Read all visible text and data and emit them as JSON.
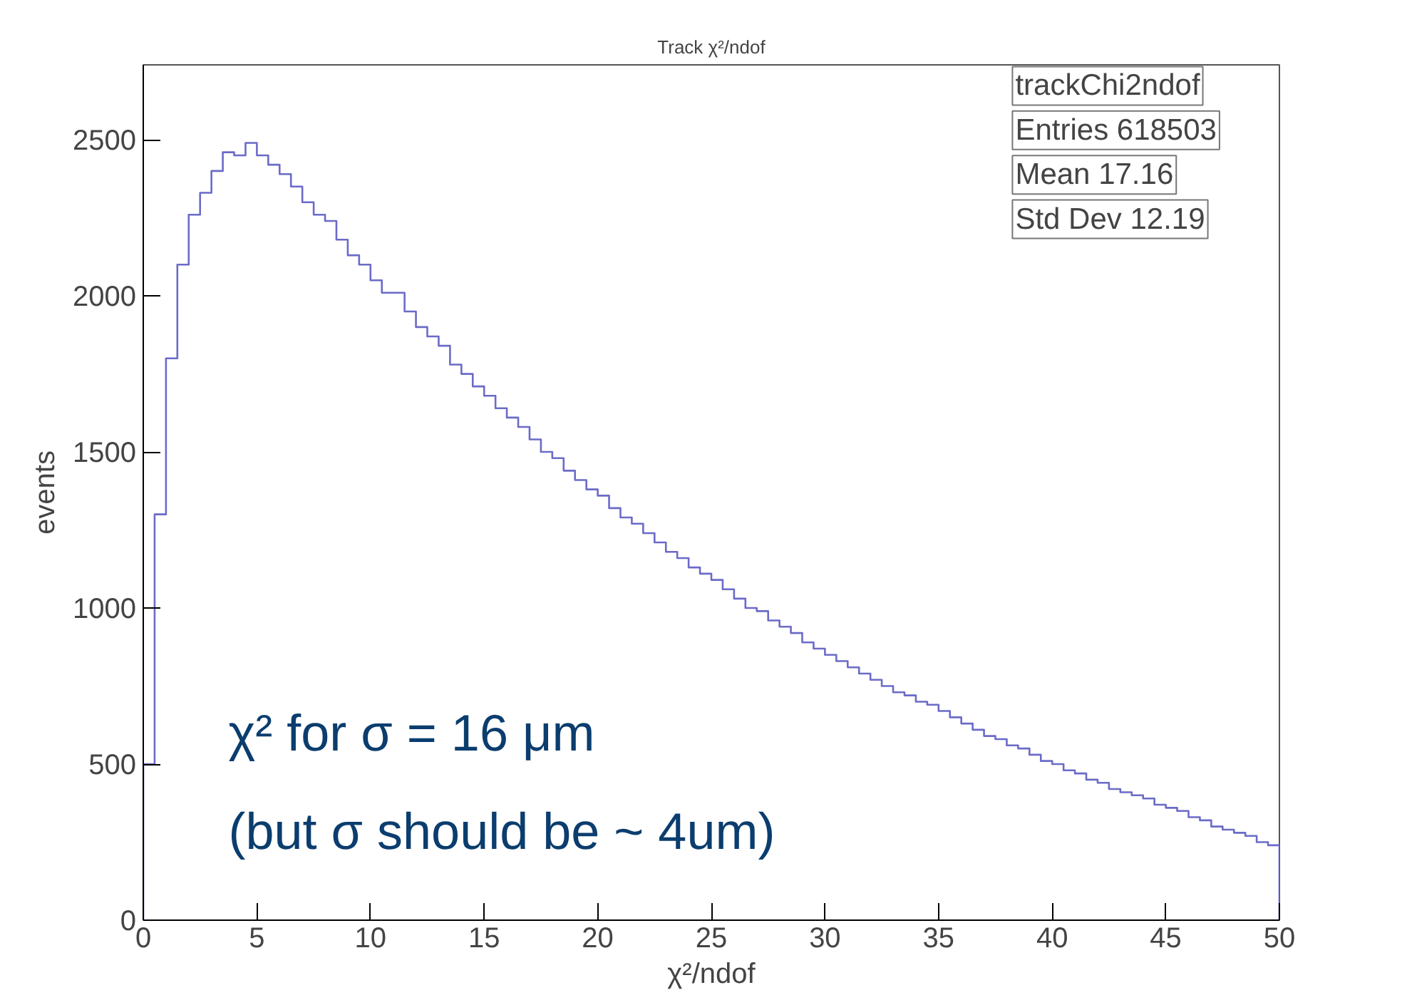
{
  "chart_data": {
    "type": "histogram",
    "title": "Track χ²/ndof",
    "xlabel": "χ²/ndof",
    "ylabel": "events",
    "bins": [
      0,
      0.5,
      1,
      1.5,
      2,
      2.5,
      3,
      3.5,
      4,
      4.5,
      5,
      5.5,
      6,
      6.5,
      7,
      7.5,
      8,
      8.5,
      9,
      9.5,
      10,
      10.5,
      11,
      11.5,
      12,
      12.5,
      13,
      13.5,
      14,
      14.5,
      15,
      15.5,
      16,
      16.5,
      17,
      17.5,
      18,
      18.5,
      19,
      19.5,
      20,
      20.5,
      21,
      21.5,
      22,
      22.5,
      23,
      23.5,
      24,
      24.5,
      25,
      25.5,
      26,
      26.5,
      27,
      27.5,
      28,
      28.5,
      29,
      29.5,
      30,
      30.5,
      31,
      31.5,
      32,
      32.5,
      33,
      33.5,
      34,
      34.5,
      35,
      35.5,
      36,
      36.5,
      37,
      37.5,
      38,
      38.5,
      39,
      39.5,
      40,
      40.5,
      41,
      41.5,
      42,
      42.5,
      43,
      43.5,
      44,
      44.5,
      45,
      45.5,
      46,
      46.5,
      47,
      47.5,
      48,
      48.5,
      49,
      49.5,
      50
    ],
    "values": [
      500,
      1300,
      1800,
      2100,
      2260,
      2330,
      2400,
      2460,
      2450,
      2490,
      2450,
      2420,
      2390,
      2350,
      2300,
      2260,
      2240,
      2180,
      2130,
      2100,
      2050,
      2010,
      2010,
      1950,
      1900,
      1870,
      1840,
      1780,
      1750,
      1710,
      1680,
      1640,
      1610,
      1580,
      1540,
      1500,
      1480,
      1440,
      1410,
      1380,
      1360,
      1320,
      1290,
      1270,
      1240,
      1210,
      1180,
      1160,
      1130,
      1110,
      1090,
      1060,
      1030,
      1000,
      990,
      960,
      940,
      920,
      890,
      870,
      850,
      830,
      810,
      790,
      770,
      750,
      730,
      720,
      700,
      690,
      670,
      650,
      630,
      610,
      590,
      580,
      560,
      550,
      530,
      510,
      500,
      480,
      470,
      450,
      440,
      420,
      410,
      400,
      390,
      370,
      360,
      350,
      330,
      320,
      300,
      290,
      280,
      270,
      250,
      240
    ],
    "color": "#6b6bc8",
    "xlim": [
      0,
      50
    ],
    "ylim": [
      0,
      2740
    ],
    "xticks": [
      0,
      5,
      10,
      15,
      20,
      25,
      30,
      35,
      40,
      45,
      50
    ],
    "yticks": [
      0,
      500,
      1000,
      1500,
      2000,
      2500
    ],
    "grid": false,
    "annotations": [
      "trackChi2ndof",
      "Entries 618503",
      "Mean 17.16",
      "Std Dev 12.19",
      "χ² for σ = 16 μm",
      "(but σ should be ~ 4um)"
    ]
  }
}
